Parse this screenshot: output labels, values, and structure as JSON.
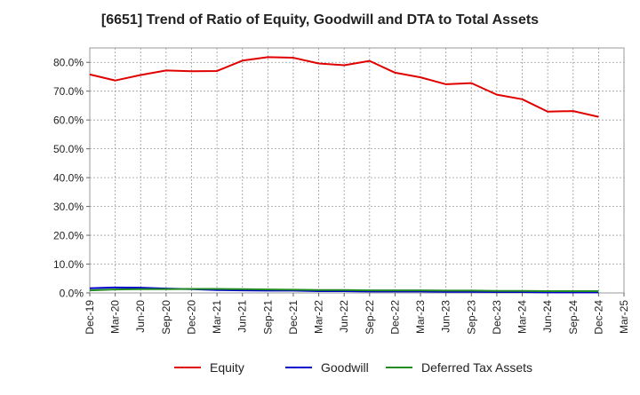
{
  "chart_data": {
    "type": "line",
    "title": "[6651]  Trend of Ratio of Equity, Goodwill and DTA to Total Assets",
    "xlabel": "",
    "ylabel": "",
    "ylim": [
      0,
      85
    ],
    "y_ticks": [
      0,
      10,
      20,
      30,
      40,
      50,
      60,
      70,
      80
    ],
    "y_tick_labels": [
      "0.0%",
      "10.0%",
      "20.0%",
      "30.0%",
      "40.0%",
      "50.0%",
      "60.0%",
      "70.0%",
      "80.0%"
    ],
    "categories": [
      "Dec-19",
      "Mar-20",
      "Jun-20",
      "Sep-20",
      "Dec-20",
      "Mar-21",
      "Jun-21",
      "Sep-21",
      "Dec-21",
      "Mar-22",
      "Jun-22",
      "Sep-22",
      "Dec-22",
      "Mar-23",
      "Jun-23",
      "Sep-23",
      "Dec-23",
      "Mar-24",
      "Jun-24",
      "Sep-24",
      "Dec-24",
      "Mar-25"
    ],
    "grid": true,
    "legend_position": "bottom",
    "series": [
      {
        "name": "Equity",
        "color": "#e00000",
        "values": [
          75.8,
          73.7,
          75.6,
          77.2,
          76.9,
          77.0,
          80.6,
          81.8,
          81.6,
          79.6,
          79.0,
          80.5,
          76.4,
          74.8,
          72.4,
          72.8,
          68.8,
          67.2,
          62.9,
          63.1,
          61.1,
          null
        ]
      },
      {
        "name": "Goodwill",
        "color": "#0000cc",
        "values": [
          1.6,
          1.9,
          1.8,
          1.5,
          1.3,
          1.0,
          0.9,
          0.8,
          0.8,
          0.6,
          0.6,
          0.5,
          0.5,
          0.5,
          0.4,
          0.4,
          0.3,
          0.3,
          0.2,
          0.2,
          0.2,
          null
        ]
      },
      {
        "name": "Deferred Tax Assets",
        "color": "#228b22",
        "values": [
          0.9,
          1.2,
          1.3,
          1.3,
          1.4,
          1.4,
          1.3,
          1.2,
          1.1,
          1.0,
          1.0,
          0.9,
          0.9,
          0.9,
          0.8,
          0.8,
          0.7,
          0.7,
          0.6,
          0.6,
          0.6,
          null
        ]
      }
    ]
  }
}
